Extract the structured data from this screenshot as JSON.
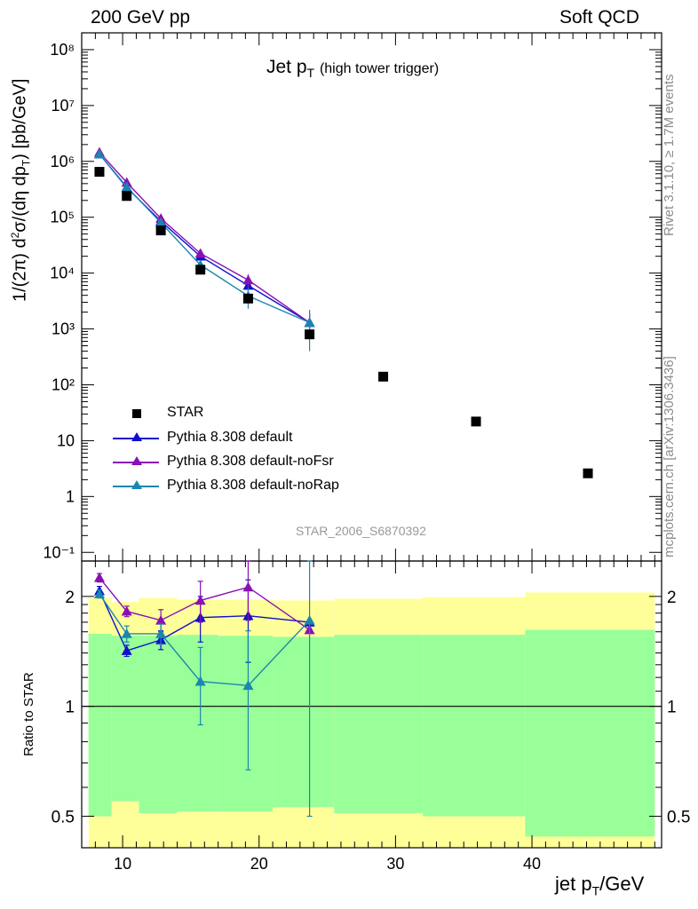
{
  "header": {
    "left": "200 GeV pp",
    "right": "Soft QCD"
  },
  "side_labels": {
    "rivet": "Rivet 3.1.10, ≥ 1.7M events",
    "mcplots": "mcplots.cern.ch [arXiv:1306.3436]"
  },
  "plot_title": {
    "main": "Jet p",
    "sub": "T",
    "note": "(high tower trigger)"
  },
  "analysis_id": "STAR_2006_S6870392",
  "colors": {
    "data": "#000000",
    "default": "#1010cc",
    "noFsr": "#8a10b4",
    "noRap": "#1a86b0",
    "band_outer": "#ffff99",
    "band_inner": "#99ff99"
  },
  "chart_data": [
    {
      "type": "scatter",
      "panel": "main",
      "ylabel": "1/(2π) d²σ/(dη dp_T) [pb/GeV]",
      "ylog": true,
      "xlim": [
        7,
        49.5
      ],
      "ylim": [
        0.07,
        200000000
      ],
      "ytick_labels": [
        "10⁻¹",
        "1",
        "10",
        "10²",
        "10³",
        "10⁴",
        "10⁵",
        "10⁶",
        "10⁷",
        "10⁸"
      ],
      "legend_position": "bottom-left",
      "series": [
        {
          "name": "STAR",
          "marker": "square",
          "x": [
            8.3,
            10.3,
            12.8,
            15.7,
            19.2,
            23.7,
            29.1,
            35.9,
            44.1
          ],
          "y": [
            650000,
            240000,
            58000,
            11500,
            3500,
            800,
            140,
            22,
            2.6
          ]
        },
        {
          "name": "Pythia 8.308 default",
          "marker": "triangle",
          "x": [
            8.3,
            10.3,
            12.8,
            15.7,
            19.2,
            23.7
          ],
          "y": [
            1350000,
            340000,
            85000,
            20000,
            6000,
            1300
          ],
          "yerr": [
            0,
            0,
            0,
            1500,
            1500,
            600
          ]
        },
        {
          "name": "Pythia 8.308 default-noFsr",
          "marker": "triangle",
          "x": [
            8.3,
            10.3,
            12.8,
            15.7,
            19.2,
            23.7
          ],
          "y": [
            1450000,
            420000,
            95000,
            22500,
            7500,
            1300
          ],
          "yerr": [
            0,
            0,
            0,
            2000,
            2000,
            600
          ]
        },
        {
          "name": "Pythia 8.308 default-noRap",
          "marker": "triangle",
          "x": [
            8.3,
            10.3,
            12.8,
            15.7,
            19.2,
            23.7
          ],
          "y": [
            1350000,
            350000,
            80000,
            14000,
            3900,
            1300
          ],
          "yerr": [
            0,
            0,
            0,
            2500,
            1600,
            900
          ]
        }
      ]
    },
    {
      "type": "line",
      "panel": "ratio",
      "ylabel": "Ratio to STAR",
      "xlabel": "jet p_T/GeV",
      "ylog": true,
      "xlim": [
        7,
        49.5
      ],
      "ylim": [
        0.41,
        2.5
      ],
      "ytick_labels": [
        "0.5",
        "1",
        "2"
      ],
      "xtick_labels": [
        "10",
        "20",
        "30",
        "40"
      ],
      "bands": {
        "edges": [
          7.5,
          9.2,
          11.2,
          14.0,
          17.0,
          21.0,
          25.5,
          32.0,
          39.5,
          49.0
        ],
        "outer_hi": [
          1.98,
          1.93,
          1.98,
          1.96,
          1.96,
          1.95,
          1.97,
          1.99,
          2.05
        ],
        "outer_lo": [
          0.37,
          0.37,
          0.37,
          0.37,
          0.37,
          0.37,
          0.37,
          0.37,
          0.37
        ],
        "inner_hi": [
          1.58,
          1.56,
          1.56,
          1.57,
          1.56,
          1.55,
          1.57,
          1.57,
          1.62
        ],
        "inner_lo": [
          0.5,
          0.55,
          0.51,
          0.515,
          0.515,
          0.53,
          0.51,
          0.5,
          0.44
        ]
      },
      "series": [
        {
          "name": "Pythia 8.308 default",
          "x": [
            8.3,
            10.3,
            12.8,
            15.7,
            19.2,
            23.7
          ],
          "y": [
            2.07,
            1.42,
            1.52,
            1.75,
            1.77,
            1.7
          ],
          "err_lo": [
            0.06,
            0.05,
            0.09,
            0.25,
            0.45,
            0.0
          ],
          "err_hi": [
            0.06,
            0.05,
            0.09,
            0.25,
            0.45,
            0.0
          ]
        },
        {
          "name": "Pythia 8.308 default-noFsr",
          "x": [
            8.3,
            10.3,
            12.8,
            15.7,
            19.2,
            23.7
          ],
          "y": [
            2.25,
            1.82,
            1.72,
            1.95,
            2.12,
            1.62
          ],
          "err_lo": [
            0.06,
            0.06,
            0.12,
            0.25,
            0.4,
            0.0
          ],
          "err_hi": [
            0.06,
            0.06,
            0.12,
            0.25,
            0.4,
            0.0
          ]
        },
        {
          "name": "Pythia 8.308 default-noRap",
          "x": [
            8.3,
            10.3,
            12.8,
            15.7,
            19.2,
            23.7
          ],
          "y": [
            2.03,
            1.58,
            1.58,
            1.17,
            1.14,
            1.72
          ],
          "err_lo": [
            0.05,
            0.08,
            0.1,
            0.28,
            0.47,
            1.22
          ],
          "err_hi": [
            0.05,
            0.08,
            0.1,
            0.28,
            0.47,
            0.8
          ]
        }
      ]
    }
  ]
}
